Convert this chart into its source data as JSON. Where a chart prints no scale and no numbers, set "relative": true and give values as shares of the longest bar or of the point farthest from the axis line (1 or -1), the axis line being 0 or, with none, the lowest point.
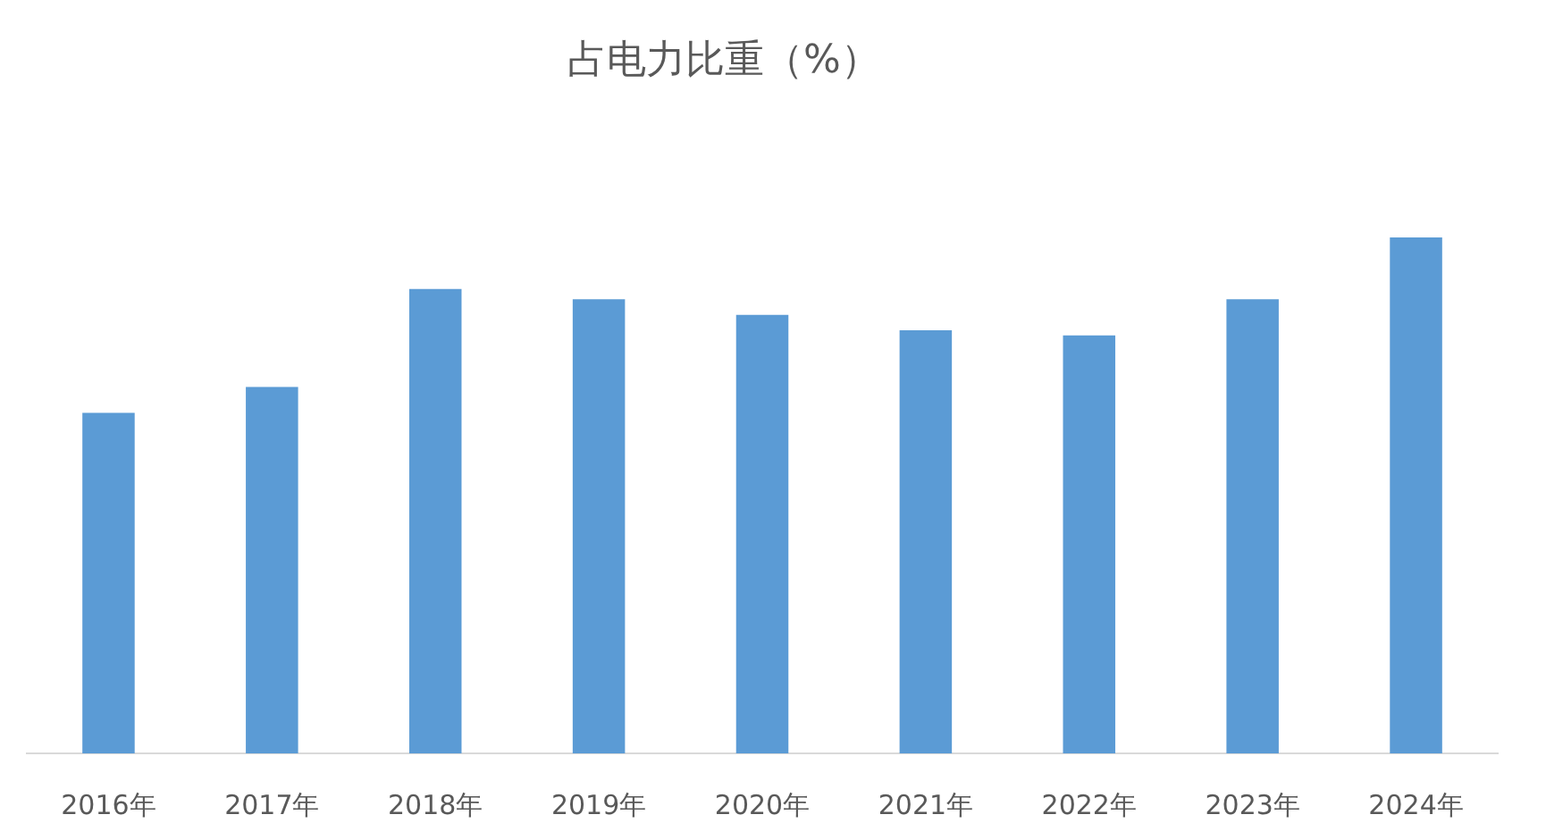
{
  "chart_data": {
    "type": "bar",
    "title": "占电力比重（%）",
    "categories": [
      "2016年",
      "2017年",
      "2018年",
      "2019年",
      "2020年",
      "2021年",
      "2022年",
      "2023年",
      "2024年"
    ],
    "values": [
      0.66,
      0.71,
      0.9,
      0.88,
      0.85,
      0.82,
      0.81,
      0.88,
      1
    ],
    "color": "#5b9bd5",
    "relative": true
  }
}
